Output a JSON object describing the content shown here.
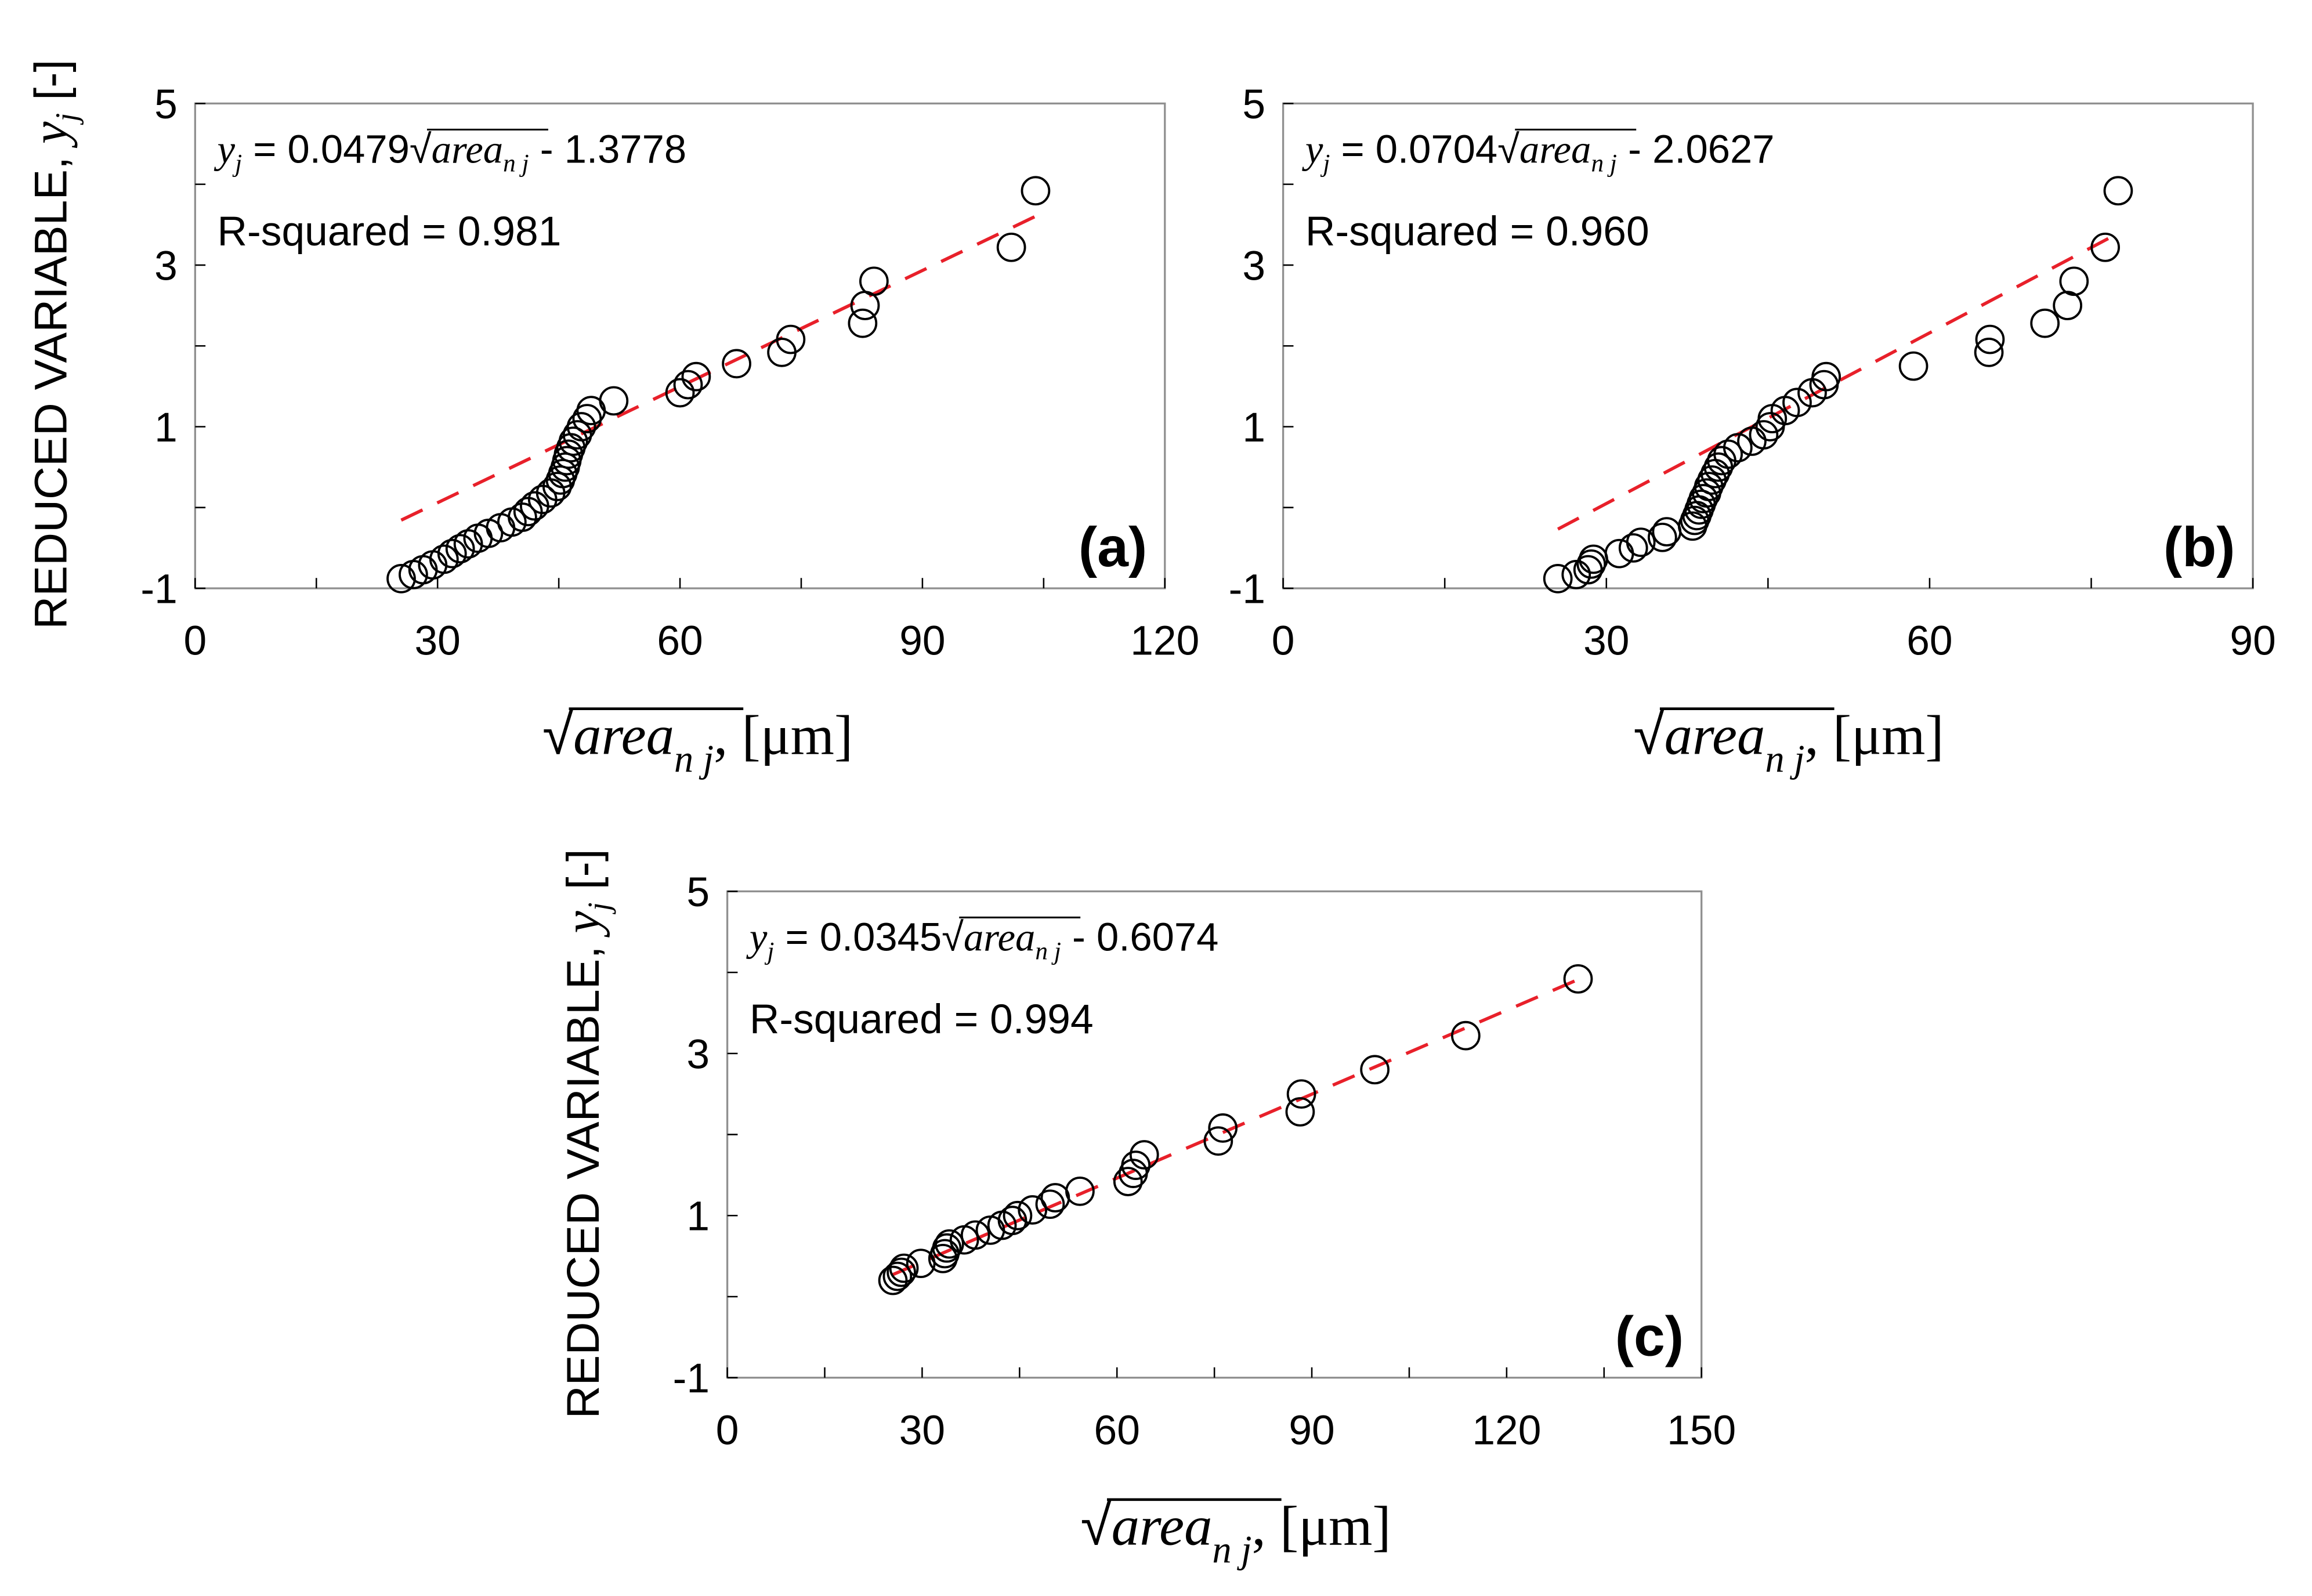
{
  "figure": {
    "ylabel_text": "REDUCED VARIABLE, ",
    "ylabel_var": "y",
    "ylabel_sub": "j",
    "ylabel_unit": " [-]",
    "xlabel_var": "area",
    "xlabel_sub": "n j",
    "xlabel_unit": ", [μm]"
  },
  "chart_data": [
    {
      "id": "a",
      "type": "scatter",
      "panel_label": "(a)",
      "xlim": [
        0,
        120
      ],
      "xticks": [
        0,
        30,
        60,
        90,
        120
      ],
      "ylim": [
        -1,
        5
      ],
      "yticks": [
        -1,
        1,
        3,
        5
      ],
      "equation": {
        "var": "y",
        "sub": "j",
        "eq": " = 0.0479",
        "rad": "area",
        "radsub": "n j",
        "tail": " - 1.3778"
      },
      "r_squared": "R-squared = 0.981",
      "fit": {
        "slope": 0.0479,
        "intercept": -1.3778,
        "x_range": [
          25.5,
          104
        ]
      },
      "points": [
        [
          25.5,
          -0.88
        ],
        [
          27,
          -0.83
        ],
        [
          28.2,
          -0.77
        ],
        [
          29.4,
          -0.71
        ],
        [
          30.8,
          -0.64
        ],
        [
          31.8,
          -0.57
        ],
        [
          32.8,
          -0.51
        ],
        [
          33.8,
          -0.45
        ],
        [
          35,
          -0.38
        ],
        [
          36.3,
          -0.32
        ],
        [
          37.8,
          -0.25
        ],
        [
          39.2,
          -0.18
        ],
        [
          40.5,
          -0.12
        ],
        [
          41.2,
          -0.05
        ],
        [
          42,
          0.02
        ],
        [
          43,
          0.1
        ],
        [
          44,
          0.18
        ],
        [
          44.8,
          0.26
        ],
        [
          45.2,
          0.34
        ],
        [
          45.5,
          0.42
        ],
        [
          45.8,
          0.5
        ],
        [
          46,
          0.58
        ],
        [
          46.2,
          0.66
        ],
        [
          46.5,
          0.74
        ],
        [
          46.8,
          0.82
        ],
        [
          47.3,
          0.9
        ],
        [
          47.8,
          1.0
        ],
        [
          48.5,
          1.1
        ],
        [
          49,
          1.2
        ],
        [
          51.8,
          1.32
        ],
        [
          60,
          1.42
        ],
        [
          61,
          1.52
        ],
        [
          62,
          1.62
        ],
        [
          67,
          1.78
        ],
        [
          72.6,
          1.92
        ],
        [
          73.7,
          2.08
        ],
        [
          82.6,
          2.28
        ],
        [
          82.9,
          2.5
        ],
        [
          84,
          2.8
        ],
        [
          101,
          3.22
        ],
        [
          104,
          3.92
        ]
      ]
    },
    {
      "id": "b",
      "type": "scatter",
      "panel_label": "(b)",
      "xlim": [
        0,
        90
      ],
      "xticks": [
        0,
        30,
        60,
        90
      ],
      "ylim": [
        -1,
        5
      ],
      "yticks": [
        -1,
        1,
        3,
        5
      ],
      "equation": {
        "var": "y",
        "sub": "j",
        "eq": " = 0.0704",
        "rad": "area",
        "radsub": "n j",
        "tail": " - 2.0627"
      },
      "r_squared": "R-squared = 0.960",
      "fit": {
        "slope": 0.0704,
        "intercept": -2.0627,
        "x_range": [
          25.5,
          77
        ]
      },
      "points": [
        [
          25.5,
          -0.88
        ],
        [
          27.2,
          -0.83
        ],
        [
          28.3,
          -0.77
        ],
        [
          28.6,
          -0.7
        ],
        [
          28.8,
          -0.64
        ],
        [
          31.2,
          -0.57
        ],
        [
          32.5,
          -0.5
        ],
        [
          33.2,
          -0.43
        ],
        [
          35.2,
          -0.37
        ],
        [
          35.6,
          -0.3
        ],
        [
          38,
          -0.23
        ],
        [
          38.2,
          -0.16
        ],
        [
          38.4,
          -0.1
        ],
        [
          38.6,
          -0.03
        ],
        [
          38.8,
          0.04
        ],
        [
          39,
          0.11
        ],
        [
          39.3,
          0.18
        ],
        [
          39.5,
          0.26
        ],
        [
          39.8,
          0.34
        ],
        [
          40.1,
          0.42
        ],
        [
          40.4,
          0.5
        ],
        [
          40.7,
          0.58
        ],
        [
          41.3,
          0.66
        ],
        [
          42.2,
          0.74
        ],
        [
          43.5,
          0.82
        ],
        [
          44.6,
          0.9
        ],
        [
          45.2,
          1.0
        ],
        [
          45.4,
          1.1
        ],
        [
          46.6,
          1.2
        ],
        [
          47.7,
          1.3
        ],
        [
          49.1,
          1.42
        ],
        [
          50.2,
          1.52
        ],
        [
          50.4,
          1.62
        ],
        [
          58.5,
          1.75
        ],
        [
          65.5,
          1.92
        ],
        [
          65.6,
          2.08
        ],
        [
          70.7,
          2.28
        ],
        [
          72.8,
          2.5
        ],
        [
          73.4,
          2.8
        ],
        [
          76.3,
          3.22
        ],
        [
          77.5,
          3.92
        ]
      ]
    },
    {
      "id": "c",
      "type": "scatter",
      "panel_label": "(c)",
      "xlim": [
        0,
        150
      ],
      "xticks": [
        0,
        30,
        60,
        90,
        120,
        150
      ],
      "ylim": [
        -1,
        5
      ],
      "yticks": [
        -1,
        1,
        3,
        5
      ],
      "equation": {
        "var": "y",
        "sub": "j",
        "eq": " = 0.0345",
        "rad": "area",
        "radsub": "n j",
        "tail": " - 0.6074"
      },
      "r_squared": "R-squared = 0.994",
      "fit": {
        "slope": 0.0345,
        "intercept": -0.6074,
        "x_range": [
          25.5,
          131
        ]
      },
      "points": [
        [
          25.5,
          0.2
        ],
        [
          26.2,
          0.25
        ],
        [
          26.8,
          0.3
        ],
        [
          27.2,
          0.35
        ],
        [
          29.8,
          0.41
        ],
        [
          33.2,
          0.47
        ],
        [
          33.5,
          0.53
        ],
        [
          33.8,
          0.6
        ],
        [
          34.2,
          0.65
        ],
        [
          36.5,
          0.7
        ],
        [
          38.2,
          0.76
        ],
        [
          40.5,
          0.82
        ],
        [
          42.3,
          0.88
        ],
        [
          43.9,
          0.94
        ],
        [
          44.7,
          1.0
        ],
        [
          47,
          1.07
        ],
        [
          49.7,
          1.14
        ],
        [
          50.5,
          1.22
        ],
        [
          54.3,
          1.3
        ],
        [
          61.7,
          1.42
        ],
        [
          62.5,
          1.52
        ],
        [
          62.9,
          1.62
        ],
        [
          64.2,
          1.75
        ],
        [
          75.6,
          1.92
        ],
        [
          76.3,
          2.08
        ],
        [
          88.2,
          2.28
        ],
        [
          88.4,
          2.5
        ],
        [
          99.7,
          2.8
        ],
        [
          113.7,
          3.22
        ],
        [
          131,
          3.92
        ]
      ]
    }
  ]
}
